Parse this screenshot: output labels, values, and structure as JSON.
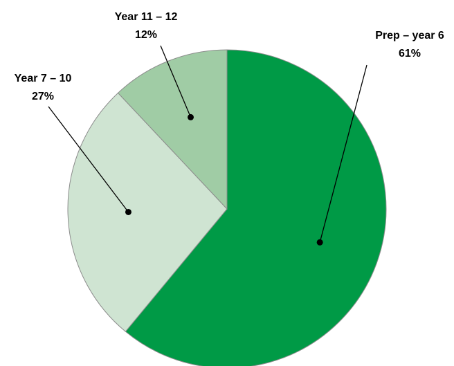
{
  "chart_data": {
    "type": "pie",
    "title": "",
    "slices": [
      {
        "label": "Prep – year 6",
        "value": 61,
        "value_label": "61%",
        "color": "#009a46"
      },
      {
        "label": "Year 7 – 10",
        "value": 27,
        "value_label": "27%",
        "color": "#cfe4d2"
      },
      {
        "label": "Year 11 – 12",
        "value": 12,
        "value_label": "12%",
        "color": "#a0cca5"
      }
    ],
    "start_angle_deg": 0,
    "direction": "clockwise",
    "legend": "none",
    "data_labels": "outside with leader lines"
  }
}
